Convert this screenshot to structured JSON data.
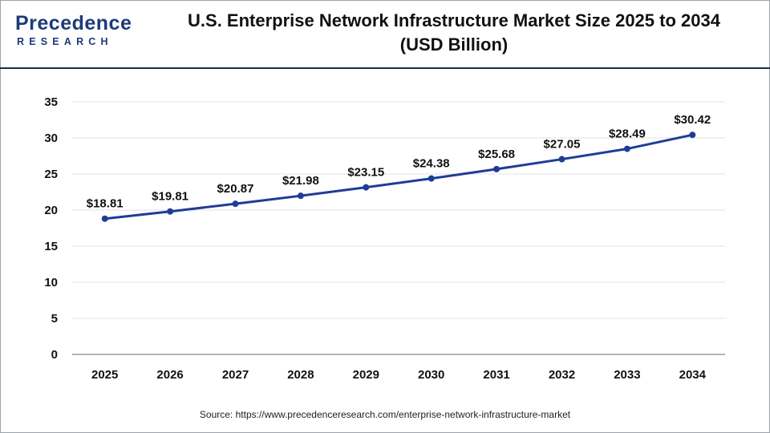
{
  "logo": {
    "main": "Precedence",
    "sub": "RESEARCH"
  },
  "title_line1": "U.S. Enterprise Network Infrastructure Market Size 2025 to 2034",
  "title_line2": "(USD Billion)",
  "source": "Source: https://www.precedenceresearch.com/enterprise-network-infrastructure-market",
  "colors": {
    "line": "#1f3c96",
    "grid": "#e3e3e3",
    "axis": "#888888",
    "brand": "#1e3a78"
  },
  "chart_data": {
    "type": "line",
    "title": "U.S. Enterprise Network Infrastructure Market Size 2025 to 2034 (USD Billion)",
    "xlabel": "",
    "ylabel": "",
    "categories": [
      "2025",
      "2026",
      "2027",
      "2028",
      "2029",
      "2030",
      "2031",
      "2032",
      "2033",
      "2034"
    ],
    "values": [
      18.81,
      19.81,
      20.87,
      21.98,
      23.15,
      24.38,
      25.68,
      27.05,
      28.49,
      30.42
    ],
    "data_labels": [
      "$18.81",
      "$19.81",
      "$20.87",
      "$21.98",
      "$23.15",
      "$24.38",
      "$25.68",
      "$27.05",
      "$28.49",
      "$30.42"
    ],
    "yticks": [
      0,
      5,
      10,
      15,
      20,
      25,
      30,
      35
    ],
    "ylim": [
      0,
      35
    ],
    "grid": true,
    "legend": "none"
  }
}
